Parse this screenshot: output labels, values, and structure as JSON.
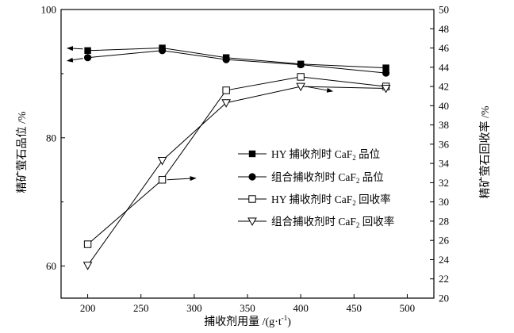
{
  "chart_data": {
    "type": "line",
    "x": [
      200,
      270,
      330,
      400,
      480
    ],
    "xlim": [
      175,
      525
    ],
    "ylim_left": [
      55,
      100
    ],
    "ylim_right": [
      20,
      50
    ],
    "xlabel": "捕收剂用量 /(g·t⁻¹)",
    "ylabel_left": "精矿萤石品位 /%",
    "ylabel_right": "精矿萤石回收率 /%",
    "x_ticks": [
      200,
      250,
      300,
      350,
      400,
      450,
      500
    ],
    "left_ticks": [
      60,
      80,
      100
    ],
    "right_ticks": [
      20,
      22,
      24,
      26,
      28,
      30,
      32,
      34,
      36,
      38,
      40,
      42,
      44,
      46,
      48,
      50
    ],
    "series": [
      {
        "name": "HY 捕收剂时 CaF2 品位",
        "axis": "left",
        "marker": "square-filled",
        "values": [
          93.6,
          94.0,
          92.5,
          91.5,
          90.9
        ]
      },
      {
        "name": "组合捕收剂时 CaF2 品位",
        "axis": "left",
        "marker": "circle-filled",
        "values": [
          92.5,
          93.6,
          92.2,
          91.4,
          90.1
        ]
      },
      {
        "name": "HY 捕收剂时 CaF2 回收率",
        "axis": "right",
        "marker": "square-open",
        "values": [
          25.6,
          32.3,
          41.6,
          43.0,
          42.0
        ]
      },
      {
        "name": "组合捕收剂时 CaF2 回收率",
        "axis": "right",
        "marker": "triangle-open",
        "values": [
          23.4,
          34.3,
          40.3,
          42.0,
          41.8
        ]
      }
    ],
    "legend": [
      {
        "prefix": "HY 捕收剂时 CaF",
        "sub": "2",
        "suffix": " 品位"
      },
      {
        "prefix": "组合捕收剂时 CaF",
        "sub": "2",
        "suffix": " 品位"
      },
      {
        "prefix": "HY 捕收剂时 CaF",
        "sub": "2",
        "suffix": " 回收率"
      },
      {
        "prefix": "组合捕收剂时 CaF",
        "sub": "2",
        "suffix": " 回收率"
      }
    ],
    "legend_position": "center-right",
    "annotations": [
      "arrows indicating axis: grade series point left, recovery series point right"
    ]
  },
  "labels": {
    "xlabel": "捕收剂用量 /(g·t",
    "xlabel_sup": "-1",
    "xlabel_end": ")",
    "ylabel_left": "精矿萤石品位 /%",
    "ylabel_right": "精矿萤石回收率 /%"
  }
}
